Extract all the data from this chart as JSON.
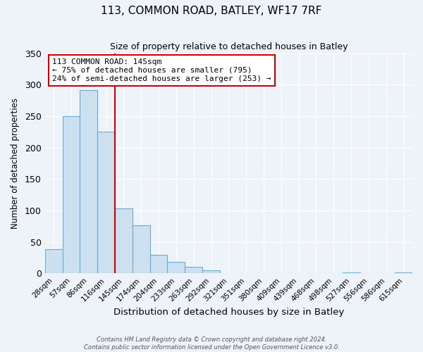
{
  "title": "113, COMMON ROAD, BATLEY, WF17 7RF",
  "subtitle": "Size of property relative to detached houses in Batley",
  "xlabel": "Distribution of detached houses by size in Batley",
  "ylabel": "Number of detached properties",
  "bin_labels": [
    "28sqm",
    "57sqm",
    "86sqm",
    "116sqm",
    "145sqm",
    "174sqm",
    "204sqm",
    "233sqm",
    "263sqm",
    "292sqm",
    "321sqm",
    "351sqm",
    "380sqm",
    "409sqm",
    "439sqm",
    "468sqm",
    "498sqm",
    "527sqm",
    "556sqm",
    "586sqm",
    "615sqm"
  ],
  "bar_values": [
    38,
    250,
    291,
    225,
    103,
    77,
    29,
    18,
    10,
    5,
    0,
    0,
    0,
    0,
    0,
    0,
    0,
    1,
    0,
    0,
    2
  ],
  "bar_color": "#cce0f0",
  "bar_edgecolor": "#6aaad4",
  "vline_x_index": 4,
  "vline_color": "#cc0000",
  "annotation_text": "113 COMMON ROAD: 145sqm\n← 75% of detached houses are smaller (795)\n24% of semi-detached houses are larger (253) →",
  "annotation_box_edgecolor": "#cc0000",
  "ylim": [
    0,
    350
  ],
  "yticks": [
    0,
    50,
    100,
    150,
    200,
    250,
    300,
    350
  ],
  "footer1": "Contains HM Land Registry data © Crown copyright and database right 2024.",
  "footer2": "Contains public sector information licensed under the Open Government Licence v3.0.",
  "bg_color": "#eef3f9",
  "plot_bg_color": "#eef3f9"
}
